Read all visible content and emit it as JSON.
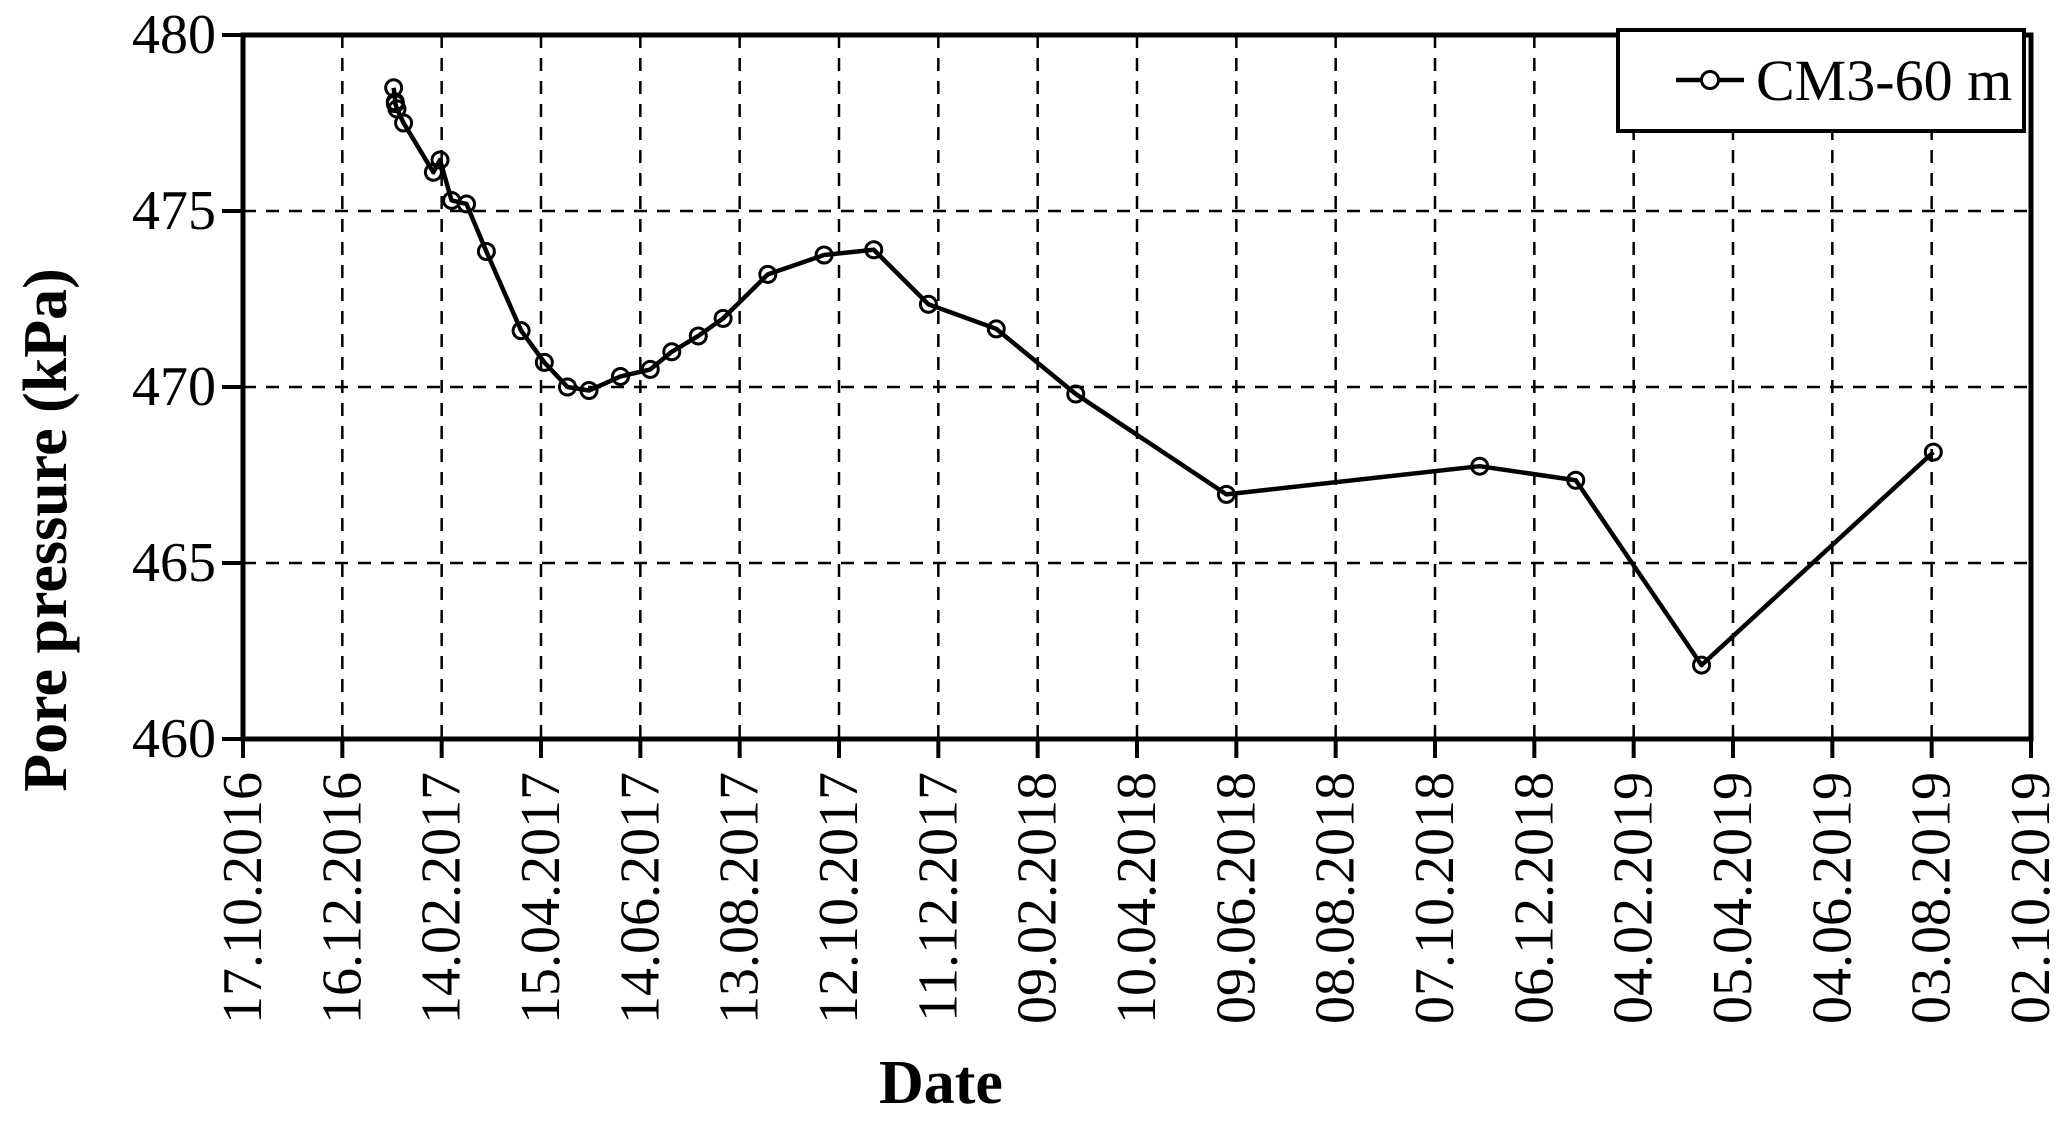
{
  "chart_data": {
    "type": "line",
    "title": "",
    "xlabel": "Date",
    "ylabel": "Pore pressure (kPa)",
    "x_axis": {
      "tick_labels": [
        "17.10.2016",
        "16.12.2016",
        "14.02.2017",
        "15.04.2017",
        "14.06.2017",
        "13.08.2017",
        "12.10.2017",
        "11.12.2017",
        "09.02.2018",
        "10.04.2018",
        "09.06.2018",
        "08.08.2018",
        "07.10.2018",
        "06.12.2018",
        "04.02.2019",
        "05.04.2019",
        "04.06.2019",
        "03.08.2019",
        "02.10.2019"
      ],
      "tick_interval_days": 60,
      "range_days": [
        0,
        1080
      ]
    },
    "y_axis": {
      "ticks": [
        460,
        465,
        470,
        475,
        480
      ],
      "ylim": [
        460,
        480
      ]
    },
    "grid": {
      "vertical": true,
      "horizontal": true,
      "style": "dashed"
    },
    "legend": {
      "position": "top-right",
      "label": "CM3-60 m"
    },
    "series": [
      {
        "name": "CM3-60 m",
        "color": "#000000",
        "marker": "open-circle",
        "points_days_kpa": [
          [
            91,
            478.5
          ],
          [
            92,
            478.1
          ],
          [
            92,
            478.05
          ],
          [
            93,
            477.9
          ],
          [
            97,
            477.5
          ],
          [
            115,
            476.1
          ],
          [
            119,
            476.45
          ],
          [
            126,
            475.3
          ],
          [
            135,
            475.2
          ],
          [
            147,
            473.85
          ],
          [
            168,
            471.6
          ],
          [
            182,
            470.7
          ],
          [
            196,
            470.0
          ],
          [
            209,
            469.9
          ],
          [
            228,
            470.3
          ],
          [
            246,
            470.5
          ],
          [
            259,
            471.0
          ],
          [
            275,
            471.45
          ],
          [
            290,
            471.95
          ],
          [
            317,
            473.2
          ],
          [
            351,
            473.75
          ],
          [
            381,
            473.9
          ],
          [
            414,
            472.35
          ],
          [
            455,
            471.65
          ],
          [
            503,
            469.8
          ],
          [
            594,
            466.95
          ],
          [
            747,
            467.75
          ],
          [
            805,
            467.35
          ],
          [
            881,
            462.1
          ],
          [
            1021,
            468.15
          ]
        ]
      }
    ]
  },
  "colors": {
    "ink": "#000000",
    "background": "#ffffff"
  }
}
